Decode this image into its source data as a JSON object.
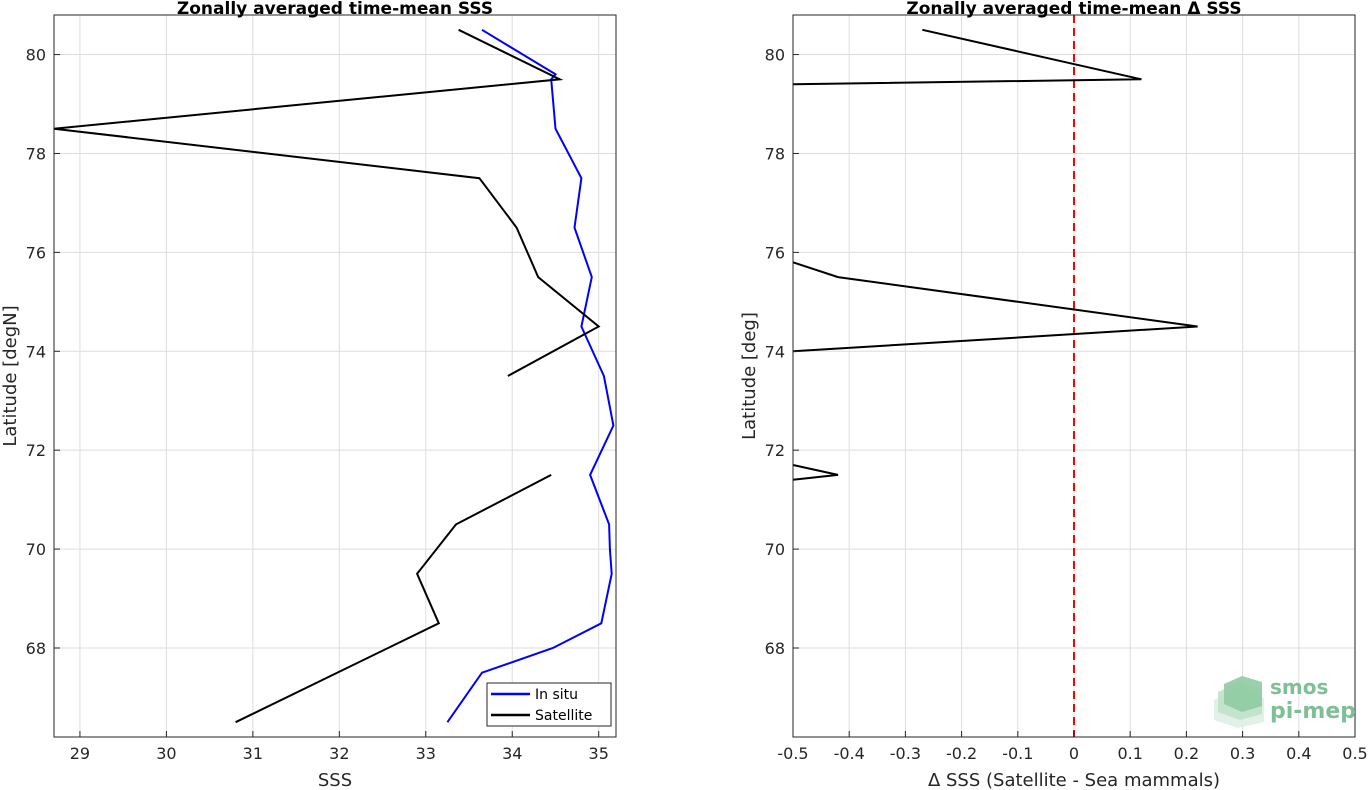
{
  "chart_data": [
    {
      "type": "line",
      "title": "Zonally averaged time-mean SSS",
      "xlabel": "SSS",
      "ylabel": "Latitude [degN]",
      "xlim": [
        28.7,
        35.2
      ],
      "ylim": [
        66.2,
        80.8
      ],
      "xticks": [
        29,
        30,
        31,
        32,
        33,
        34,
        35
      ],
      "yticks": [
        68,
        70,
        72,
        74,
        76,
        78,
        80
      ],
      "grid": true,
      "legend_position": "bottom-right",
      "series": [
        {
          "name": "In situ",
          "color": "#0000ff",
          "x": [
            33.25,
            33.65,
            34.47,
            35.03,
            35.15,
            35.13,
            35.12,
            34.9,
            35.17,
            35.06,
            34.8,
            34.92,
            34.72,
            34.8,
            34.5,
            34.45,
            34.5,
            33.65
          ],
          "y": [
            66.5,
            67.5,
            68.0,
            68.5,
            69.5,
            70.0,
            70.5,
            71.5,
            72.5,
            73.5,
            74.5,
            75.5,
            76.5,
            77.5,
            78.5,
            79.5,
            79.6,
            80.5
          ]
        },
        {
          "name": "Satellite",
          "color": "#000000",
          "segments": [
            {
              "x": [
                30.8,
                33.15,
                32.9,
                33.35,
                34.45
              ],
              "y": [
                66.5,
                68.5,
                69.5,
                70.5,
                71.5
              ]
            },
            {
              "x": [
                33.95,
                35.0,
                34.3,
                34.05,
                33.62,
                28.7,
                34.55,
                33.38
              ],
              "y": [
                73.5,
                74.5,
                75.5,
                76.5,
                77.5,
                78.5,
                79.5,
                80.5
              ]
            }
          ]
        }
      ]
    },
    {
      "type": "line",
      "title": "Zonally averaged time-mean Δ SSS",
      "xlabel": "Δ SSS (Satellite - Sea mammals)",
      "ylabel": "Latitude [deg]",
      "xlim": [
        -0.5,
        0.5
      ],
      "ylim": [
        66.2,
        80.8
      ],
      "xticks": [
        -0.5,
        -0.4,
        -0.3,
        -0.2,
        -0.1,
        0,
        0.1,
        0.2,
        0.3,
        0.4,
        0.5
      ],
      "yticks": [
        68,
        70,
        72,
        74,
        76,
        78,
        80
      ],
      "grid": true,
      "reference_line": {
        "x": 0,
        "color": "#ff0000",
        "style": "dashed"
      },
      "series": [
        {
          "color": "#000000",
          "segments": [
            {
              "x": [
                -0.5,
                -0.42,
                -0.5
              ],
              "y": [
                71.7,
                71.5,
                71.4
              ]
            },
            {
              "x": [
                -0.5,
                0.22,
                -0.42,
                -0.5
              ],
              "y": [
                74.0,
                74.5,
                75.5,
                75.8
              ]
            },
            {
              "x": [
                -0.5,
                0.12,
                -0.27
              ],
              "y": [
                79.4,
                79.5,
                80.5
              ]
            }
          ]
        }
      ]
    }
  ],
  "xtick_labels_right": [
    "-0.5",
    "-0.4",
    "-0.3",
    "-0.2",
    "-0.1",
    "0",
    "0.1",
    "0.2",
    "0.3",
    "0.4",
    "0.5"
  ],
  "logo": {
    "line1": "smos",
    "line2": "pi-mep",
    "color": "#7fbf95"
  }
}
